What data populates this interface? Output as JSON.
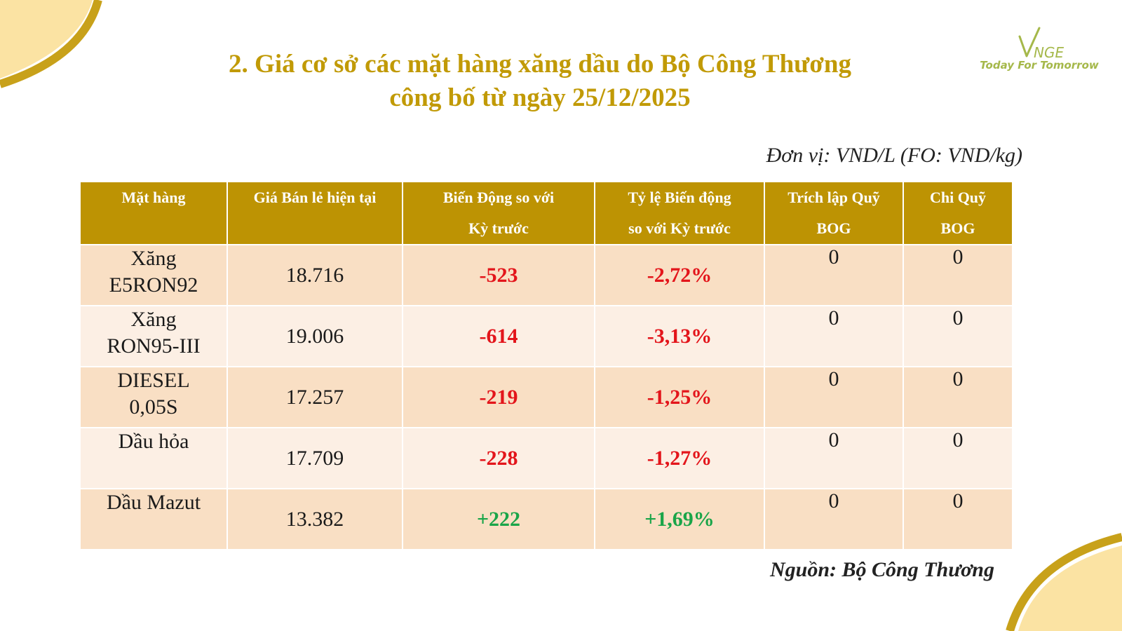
{
  "brand": {
    "logo_text": "VNGE",
    "tagline": "Today For Tomorrow",
    "accent_color": "#c19a06",
    "logo_color": "#a5b84a"
  },
  "title": {
    "line1": "2. Giá cơ sở các mặt hàng xăng dầu do Bộ Công Thương",
    "line2": "công bố từ ngày 25/12/2025"
  },
  "unit": "Đơn vị: VND/L (FO: VND/kg)",
  "table": {
    "headers": [
      [
        "Mặt hàng",
        ""
      ],
      [
        "Giá Bán lẻ hiện tại",
        ""
      ],
      [
        "Biến Động so với",
        "Kỳ trước"
      ],
      [
        "Tỷ lệ Biến động",
        "so với Kỳ trước"
      ],
      [
        "Trích lập Quỹ",
        "BOG"
      ],
      [
        "Chi Quỹ",
        "BOG"
      ]
    ],
    "rows": [
      {
        "product": [
          "Xăng",
          "E5RON92"
        ],
        "price": "18.716",
        "change": "-523",
        "percent": "-2,72%",
        "bog_in": "0",
        "bog_out": "0",
        "trend": "neg"
      },
      {
        "product": [
          "Xăng",
          "RON95-III"
        ],
        "price": "19.006",
        "change": "-614",
        "percent": "-3,13%",
        "bog_in": "0",
        "bog_out": "0",
        "trend": "neg"
      },
      {
        "product": [
          "DIESEL",
          "0,05S"
        ],
        "price": "17.257",
        "change": "-219",
        "percent": "-1,25%",
        "bog_in": "0",
        "bog_out": "0",
        "trend": "neg"
      },
      {
        "product": [
          "Dầu hỏa",
          ""
        ],
        "price": "17.709",
        "change": "-228",
        "percent": "-1,27%",
        "bog_in": "0",
        "bog_out": "0",
        "trend": "neg"
      },
      {
        "product": [
          "Dầu Mazut",
          ""
        ],
        "price": "13.382",
        "change": "+222",
        "percent": "+1,69%",
        "bog_in": "0",
        "bog_out": "0",
        "trend": "pos"
      }
    ],
    "colors": {
      "header_bg": "#bd9303",
      "row_odd": "#f9dfc4",
      "row_even": "#fcefe4",
      "negative": "#e3151b",
      "positive": "#1aa549"
    }
  },
  "source": "Nguồn: Bộ Công Thương"
}
